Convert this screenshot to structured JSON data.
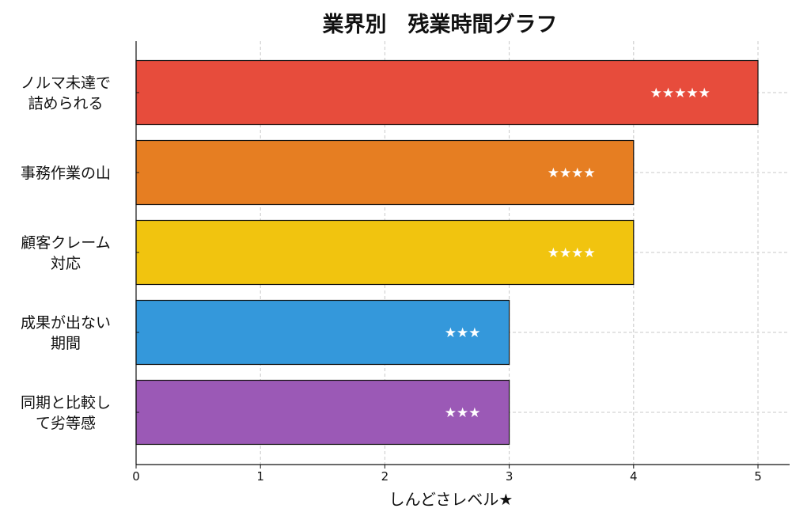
{
  "chart_data": {
    "type": "bar",
    "orientation": "horizontal",
    "title": "業界別　残業時間グラフ",
    "xlabel": "しんどさレベル★",
    "ylabel": "",
    "xlim": [
      0,
      5.25
    ],
    "xticks": [
      0,
      1,
      2,
      3,
      4,
      5
    ],
    "grid": true,
    "categories": [
      "ノルマ未達で\n詰められる",
      "事務作業の山",
      "顧客クレーム\n対応",
      "成果が出ない\n期間",
      "同期と比較し\nて劣等感"
    ],
    "values": [
      5,
      4,
      4,
      3,
      3
    ],
    "bar_labels": [
      "★★★★★",
      "★★★★",
      "★★★★",
      "★★★",
      "★★★"
    ],
    "colors": [
      "#e74c3c",
      "#e67e22",
      "#f1c40f",
      "#3498db",
      "#9b59b6"
    ]
  }
}
